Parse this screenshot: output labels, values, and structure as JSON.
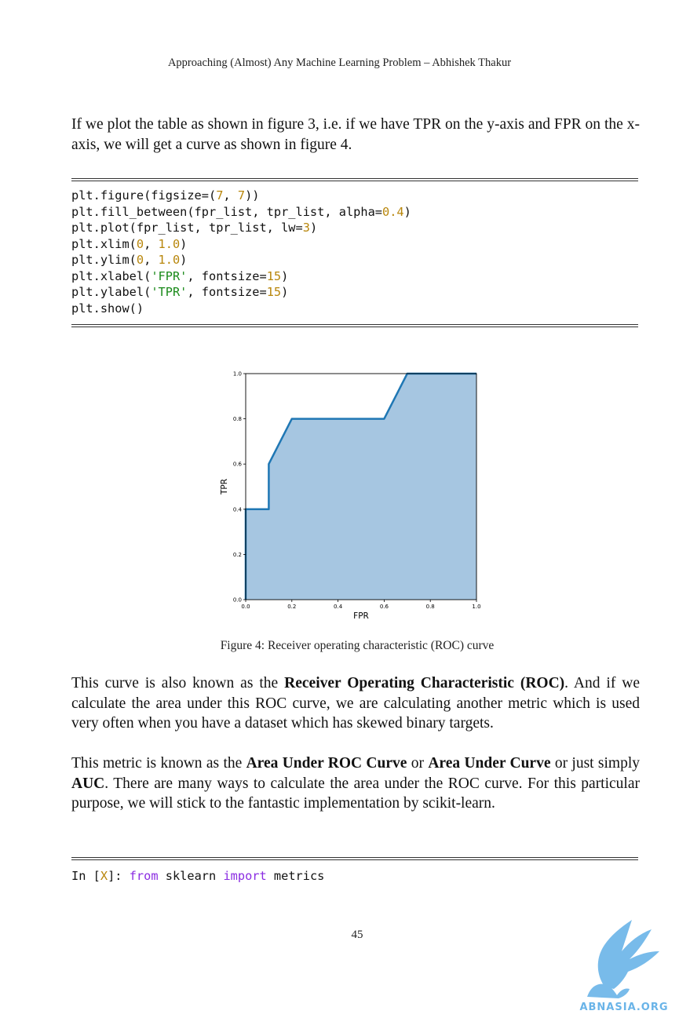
{
  "header": {
    "running_title": "Approaching (Almost) Any Machine Learning Problem – Abhishek Thakur"
  },
  "intro": {
    "text": "If we plot the table as shown in figure 3, i.e. if we have TPR on the y-axis and FPR on the x-axis, we will get a curve as shown in figure 4."
  },
  "code_block_1": {
    "lines": [
      [
        {
          "t": "plt.figure(figsize=("
        },
        {
          "t": "7",
          "c": "num"
        },
        {
          "t": ", "
        },
        {
          "t": "7",
          "c": "num"
        },
        {
          "t": "))"
        }
      ],
      [
        {
          "t": "plt.fill_between(fpr_list, tpr_list, alpha="
        },
        {
          "t": "0.4",
          "c": "num"
        },
        {
          "t": ")"
        }
      ],
      [
        {
          "t": "plt.plot(fpr_list, tpr_list, lw="
        },
        {
          "t": "3",
          "c": "num"
        },
        {
          "t": ")"
        }
      ],
      [
        {
          "t": "plt.xlim("
        },
        {
          "t": "0",
          "c": "num"
        },
        {
          "t": ", "
        },
        {
          "t": "1.0",
          "c": "num"
        },
        {
          "t": ")"
        }
      ],
      [
        {
          "t": "plt.ylim("
        },
        {
          "t": "0",
          "c": "num"
        },
        {
          "t": ", "
        },
        {
          "t": "1.0",
          "c": "num"
        },
        {
          "t": ")"
        }
      ],
      [
        {
          "t": "plt.xlabel("
        },
        {
          "t": "'FPR'",
          "c": "str"
        },
        {
          "t": ", fontsize="
        },
        {
          "t": "15",
          "c": "num"
        },
        {
          "t": ")"
        }
      ],
      [
        {
          "t": "plt.ylabel("
        },
        {
          "t": "'TPR'",
          "c": "str"
        },
        {
          "t": ", fontsize="
        },
        {
          "t": "15",
          "c": "num"
        },
        {
          "t": ")"
        }
      ],
      [
        {
          "t": "plt.show()"
        }
      ]
    ]
  },
  "chart_data": {
    "type": "area",
    "x": [
      0.0,
      0.0,
      0.1,
      0.1,
      0.2,
      0.6,
      0.7,
      1.0
    ],
    "y": [
      0.0,
      0.4,
      0.4,
      0.6,
      0.8,
      0.8,
      1.0,
      1.0
    ],
    "xlabel": "FPR",
    "ylabel": "TPR",
    "xlim": [
      0,
      1.0
    ],
    "ylim": [
      0,
      1.0
    ],
    "xticks": [
      "0.0",
      "0.2",
      "0.4",
      "0.6",
      "0.8",
      "1.0"
    ],
    "yticks": [
      "0.0",
      "0.2",
      "0.4",
      "0.6",
      "0.8",
      "1.0"
    ],
    "line_color": "#1f77b4",
    "fill_color": "#a6c6e1",
    "grid": false
  },
  "figure": {
    "caption": "Figure 4: Receiver operating characteristic (ROC) curve"
  },
  "para_roc": {
    "before": "This curve is also known as the ",
    "bold": "Receiver Operating Characteristic (ROC)",
    "after": ". And if we calculate the area under this ROC curve, we are calculating another metric which is used very often when you have a dataset which has skewed binary targets."
  },
  "para_auc": {
    "p1": "This metric is known as the ",
    "b1": "Area Under ROC Curve",
    "p2": " or ",
    "b2": "Area Under Curve",
    "p3": " or just simply ",
    "b3": "AUC",
    "p4": ". There are many ways to calculate the area under the ROC curve. For this particular purpose, we will stick to the fantastic implementation by scikit-learn."
  },
  "code_block_2": {
    "lines": [
      [
        {
          "t": "In ["
        },
        {
          "t": "X",
          "c": "num"
        },
        {
          "t": "]: "
        },
        {
          "t": "from",
          "c": "kw"
        },
        {
          "t": " sklearn "
        },
        {
          "t": "import",
          "c": "kw"
        },
        {
          "t": " metrics"
        }
      ]
    ]
  },
  "footer": {
    "page_number": "45",
    "watermark_text": "ABNASIA.ORG"
  }
}
